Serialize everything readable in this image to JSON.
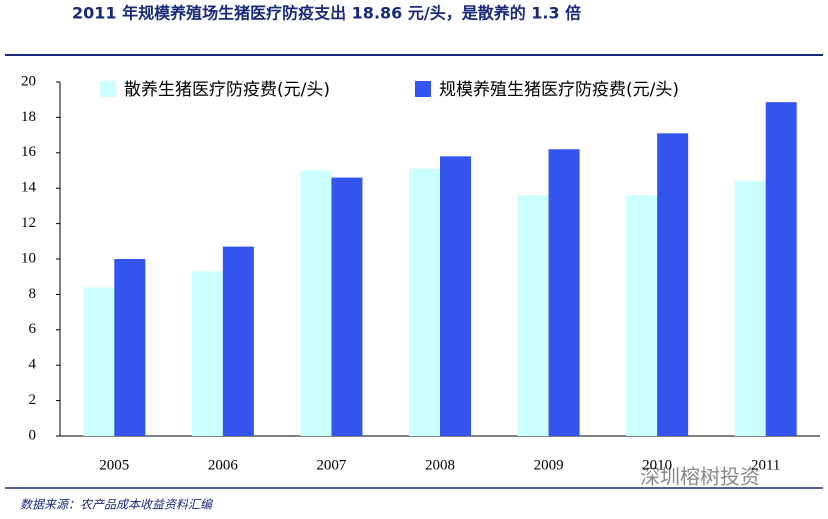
{
  "chart_data": {
    "type": "bar",
    "title": "2011 年规模养殖场生猪医疗防疫支出 18.86 元/头，是散养的 1.3 倍",
    "categories": [
      "2005",
      "2006",
      "2007",
      "2008",
      "2009",
      "2010",
      "2011"
    ],
    "series": [
      {
        "name": "散养生猪医疗防疫费(元/头)",
        "color": "#ccffff",
        "values": [
          8.4,
          9.3,
          15.0,
          15.1,
          13.6,
          13.6,
          14.4
        ]
      },
      {
        "name": "规模养殖生猪医疗防疫费(元/头)",
        "color": "#3355ee",
        "values": [
          10.0,
          10.7,
          14.6,
          15.8,
          16.2,
          17.1,
          18.86
        ]
      }
    ],
    "ylim": [
      0,
      20
    ],
    "yticks": [
      0,
      2,
      4,
      6,
      8,
      10,
      12,
      14,
      16,
      18,
      20
    ],
    "grid": false,
    "legend": "top",
    "source": "数据来源：农产品成本收益资料汇编",
    "watermark": "深圳榕树投资"
  }
}
